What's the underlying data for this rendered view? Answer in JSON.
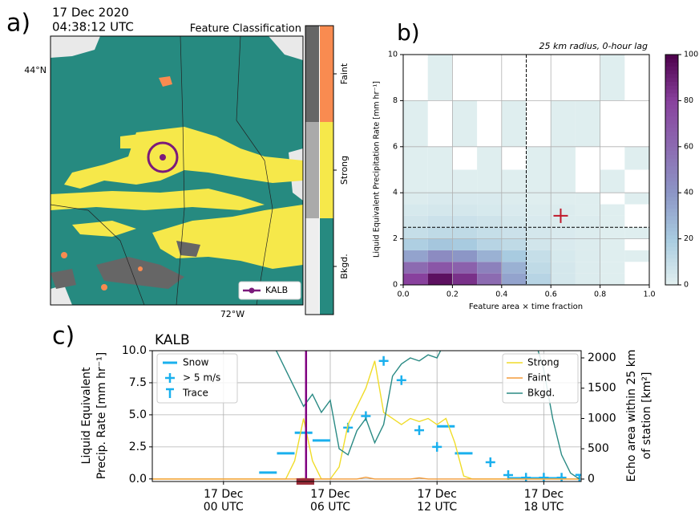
{
  "chart_data": [
    {
      "type": "map",
      "panel_label": "a)",
      "date": "17 Dec 2020",
      "time": "04:38:12 UTC",
      "title": "Feature Classification",
      "lat_label": "44°N",
      "lon_label": "72°W",
      "station": "KALB",
      "station_color": "#7b1a7b",
      "classes": [
        {
          "name": "Faint",
          "color": "#f98b50",
          "gray": "#666666"
        },
        {
          "name": "Strong",
          "color": "#f6e84a",
          "gray": "#aaaaaa"
        },
        {
          "name": "Bkgd.",
          "color": "#268a80",
          "gray": "#eeeeee"
        }
      ]
    },
    {
      "type": "heatmap",
      "panel_label": "b)",
      "title": "25 km radius, 0-hour lag",
      "xlabel": "Feature area × time fraction",
      "ylabel": "Liquid Equivalent Precipitation Rate [mm hr⁻¹]",
      "x_bins": [
        0,
        0.1,
        0.2,
        0.3,
        0.4,
        0.5,
        0.6,
        0.7,
        0.8,
        0.9,
        1.0
      ],
      "y_bins": [
        0,
        0.5,
        1,
        1.5,
        2,
        2.5,
        3,
        3.5,
        4,
        5,
        6,
        8,
        10
      ],
      "z": [
        [
          80,
          95,
          85,
          60,
          35,
          15,
          5,
          2,
          1,
          0
        ],
        [
          60,
          70,
          65,
          50,
          30,
          12,
          5,
          2,
          1,
          0
        ],
        [
          35,
          45,
          40,
          30,
          20,
          10,
          4,
          2,
          1,
          1
        ],
        [
          18,
          22,
          20,
          15,
          12,
          6,
          3,
          2,
          1,
          0
        ],
        [
          10,
          12,
          12,
          10,
          8,
          5,
          3,
          2,
          1,
          1
        ],
        [
          6,
          8,
          8,
          7,
          5,
          3,
          2,
          2,
          1,
          0
        ],
        [
          4,
          5,
          5,
          4,
          3,
          2,
          2,
          1,
          1,
          0
        ],
        [
          2,
          3,
          3,
          3,
          2,
          1,
          1,
          1,
          0,
          1
        ],
        [
          1,
          1,
          1,
          1,
          1,
          1,
          1,
          0,
          1,
          0
        ],
        [
          1,
          1,
          0,
          1,
          0,
          1,
          1,
          0,
          0,
          1
        ],
        [
          1,
          0,
          1,
          0,
          1,
          0,
          1,
          1,
          0,
          0
        ],
        [
          0,
          1,
          0,
          0,
          0,
          0,
          0,
          0,
          1,
          0
        ]
      ],
      "xlim": [
        0,
        1
      ],
      "ylim": [
        0,
        10
      ],
      "xticks": [
        {
          "value": 0,
          "label": "0.0"
        },
        0.2,
        0.4,
        0.6,
        0.8,
        {
          "value": 1,
          "label": "1.0"
        }
      ],
      "yticks": [
        0,
        2,
        4,
        6,
        8,
        10
      ],
      "clim": [
        0,
        100
      ],
      "cticks": [
        0,
        20,
        40,
        60,
        80,
        100
      ],
      "colormap": [
        "#e2f0f0",
        "#a8cbe0",
        "#8c96c6",
        "#8c6bb1",
        "#88419d",
        "#4d004b"
      ],
      "vline": 0.5,
      "hline": 2.5,
      "point": {
        "x": 0.64,
        "y": 3.0,
        "color": "#c0182a"
      },
      "grid": true
    },
    {
      "type": "timeseries",
      "panel_label": "c)",
      "title": "KALB",
      "ylabel": [
        "Liquid Equivalent",
        "Precip. Rate [mm hr⁻¹]"
      ],
      "y2label": [
        "Echo area within 25 km",
        "of station [km²]"
      ],
      "xlim": [
        -4,
        20.1
      ],
      "ylim": [
        -0.2,
        10
      ],
      "y2lim": [
        -40,
        2119
      ],
      "xticks": [
        {
          "value": 0,
          "label": "17 Dec\n00 UTC"
        },
        {
          "value": 6,
          "label": "17 Dec\n06 UTC"
        },
        {
          "value": 12,
          "label": "17 Dec\n12 UTC"
        },
        {
          "value": 18,
          "label": "17 Dec\n18 UTC"
        }
      ],
      "yticks": [
        {
          "value": 0,
          "label": "0.0"
        },
        2.5,
        {
          "value": 5,
          "label": "5.0"
        },
        7.5,
        {
          "value": 10,
          "label": "10.0"
        }
      ],
      "y2ticks": [
        0,
        500,
        1000,
        1500,
        2000
      ],
      "grid": true,
      "vline": {
        "x": 4.64,
        "color": "#800080"
      },
      "span": {
        "x": [
          4.1,
          5.1
        ],
        "color": "#9b2d3a"
      },
      "x": [
        -4,
        -3.5,
        -3,
        -2.5,
        -2,
        -1.5,
        -1,
        -0.5,
        0,
        0.5,
        1,
        1.5,
        2,
        2.5,
        3,
        3.5,
        4,
        4.5,
        5,
        5.5,
        6,
        6.5,
        7,
        7.5,
        8,
        8.5,
        9,
        9.5,
        10,
        10.5,
        11,
        11.5,
        12,
        12.5,
        13,
        13.5,
        14,
        14.5,
        15,
        15.5,
        16,
        16.5,
        17,
        17.5,
        18,
        18.5,
        19,
        19.5,
        20
      ],
      "series": [
        {
          "name": "Snow",
          "color": "#1ab0ee",
          "marker": "dash",
          "x": [
            2.5,
            3.5,
            4.5,
            5.5,
            12.5,
            13.5,
            16.5,
            17.5,
            18.5
          ],
          "values": [
            0.5,
            2.0,
            3.6,
            3.0,
            4.1,
            2.0,
            0.05,
            0.05,
            0.05
          ]
        },
        {
          "name": "> 5 m/s",
          "color": "#1ab0ee",
          "marker": "plus",
          "x": [
            7,
            8,
            9,
            10,
            11,
            12,
            15,
            16,
            17,
            18,
            19
          ],
          "values": [
            4.0,
            4.9,
            9.2,
            7.7,
            3.8,
            2.5,
            1.3,
            0.3,
            0.1,
            0.1,
            0.1
          ]
        },
        {
          "name": "Trace",
          "color": "#1ab0ee",
          "marker": "trace",
          "x": [
            20
          ],
          "values": [
            0
          ]
        },
        {
          "name": "Strong",
          "color": "#f0dc28",
          "axis": "y2",
          "values": [
            0,
            0,
            0,
            0,
            0,
            0,
            0,
            0,
            0,
            0,
            0,
            0,
            0,
            0,
            0,
            0,
            300,
            1000,
            300,
            0,
            0,
            200,
            900,
            1200,
            1500,
            1950,
            1100,
            1000,
            900,
            1000,
            950,
            1000,
            900,
            1000,
            600,
            50,
            0,
            0,
            0,
            0,
            0,
            0,
            0,
            0,
            0,
            0,
            0,
            0,
            0
          ]
        },
        {
          "name": "Faint",
          "color": "#f39c3a",
          "axis": "y2",
          "values": [
            0,
            0,
            0,
            0,
            0,
            0,
            0,
            0,
            0,
            0,
            0,
            0,
            0,
            0,
            0,
            0,
            0,
            10,
            0,
            0,
            0,
            0,
            0,
            0,
            30,
            0,
            0,
            0,
            0,
            0,
            20,
            0,
            0,
            0,
            0,
            0,
            0,
            0,
            0,
            0,
            0,
            0,
            0,
            0,
            0,
            0,
            0,
            0,
            0
          ]
        },
        {
          "name": "Bkgd.",
          "color": "#2a8a84",
          "axis": "y2",
          "values": [
            2300,
            2300,
            2300,
            2300,
            2300,
            2300,
            2300,
            2300,
            2300,
            2300,
            2300,
            2300,
            2300,
            2300,
            2100,
            1800,
            1500,
            1200,
            1400,
            1100,
            1300,
            500,
            400,
            800,
            1000,
            600,
            900,
            1700,
            1900,
            2000,
            1950,
            2050,
            2000,
            2300,
            2300,
            2300,
            2300,
            2300,
            2300,
            2300,
            2300,
            2300,
            2300,
            2300,
            1800,
            1000,
            400,
            100,
            0
          ]
        }
      ]
    }
  ]
}
